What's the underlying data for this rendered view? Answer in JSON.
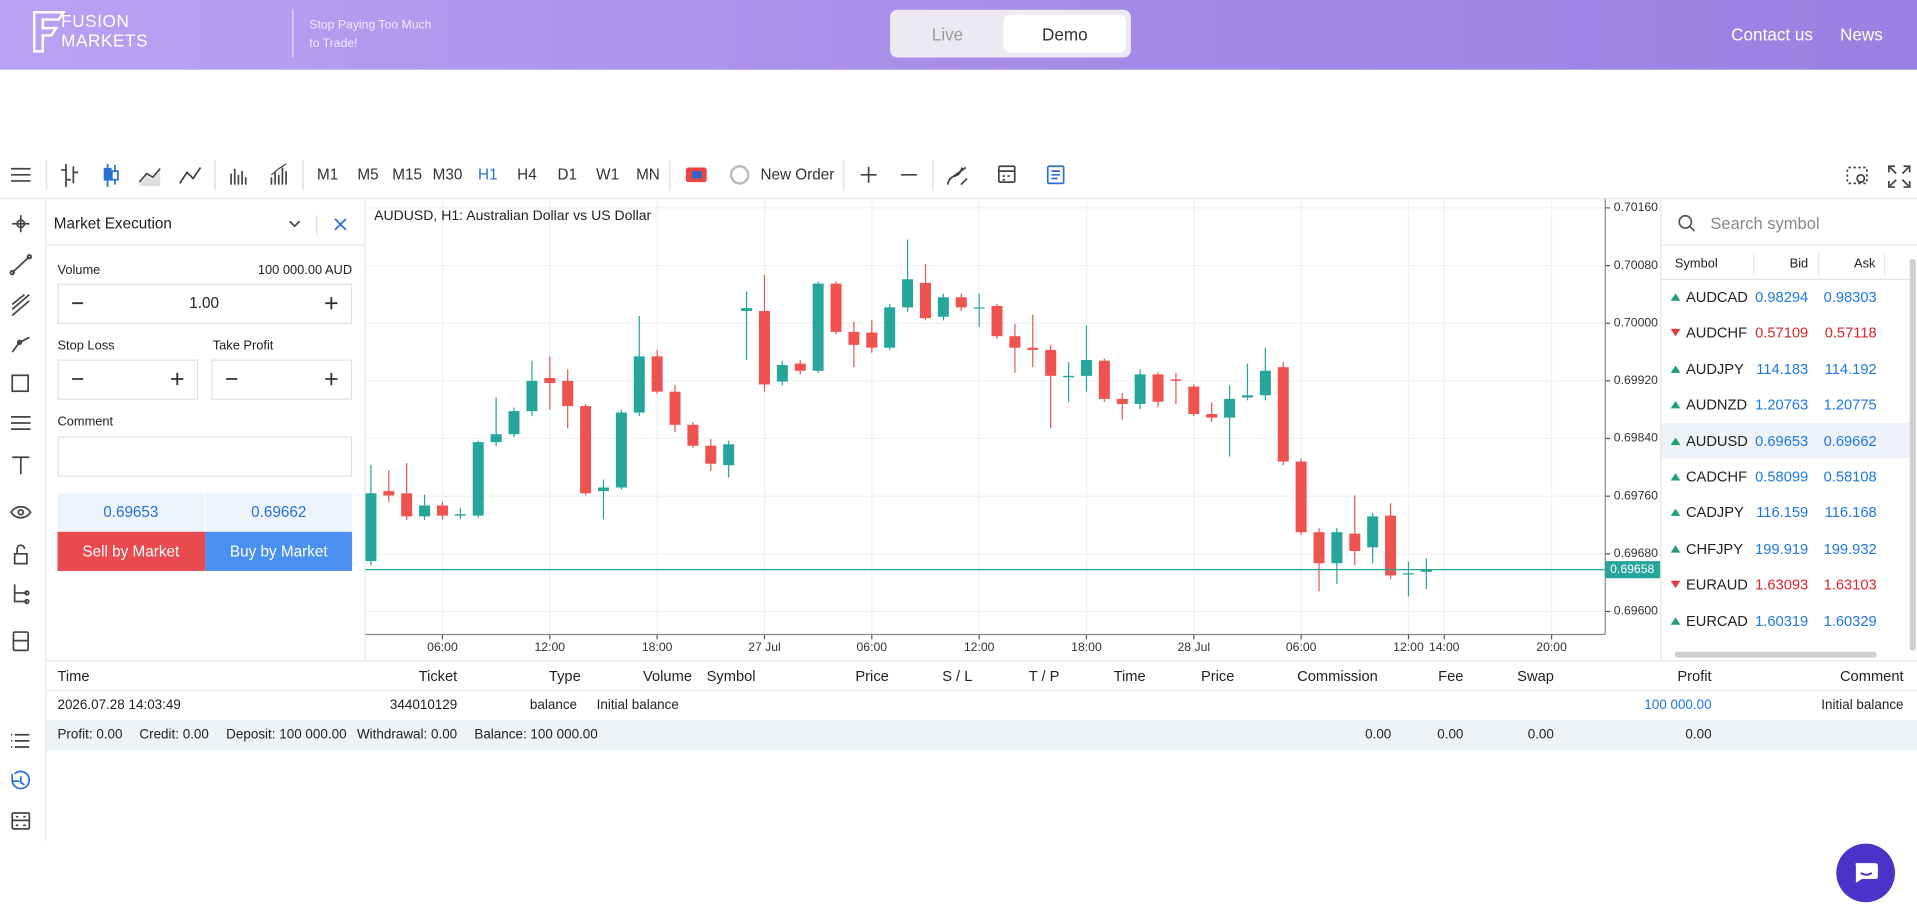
{
  "header": {
    "logo": [
      "FUSION",
      "MARKETS"
    ],
    "tagline": [
      "Stop Paying Too Much",
      "to Trade!"
    ],
    "modes": [
      "Live",
      "Demo"
    ],
    "links": [
      "Contact us",
      "News"
    ]
  },
  "toolbar": {
    "timeframes": [
      "M1",
      "M5",
      "M15",
      "M30",
      "H1",
      "H4",
      "D1",
      "W1",
      "MN"
    ],
    "active_timeframe": 4,
    "new_order": "New Order"
  },
  "order_panel": {
    "title": "Market Execution",
    "volume_label": "Volume",
    "volume_amount": "100 000.00 AUD",
    "volume": "1.00",
    "stop_loss": "Stop Loss",
    "take_profit": "Take Profit",
    "comment": "Comment",
    "bid": "0.69653",
    "ask": "0.69662",
    "sell": "Sell by Market",
    "buy": "Buy by Market"
  },
  "watchlist": {
    "search_placeholder": "Search symbol",
    "columns": [
      "Symbol",
      "Bid",
      "Ask"
    ],
    "selected": 4,
    "rows": [
      {
        "symbol": "AUDCAD",
        "bid": "0.98294",
        "ask": "0.98303",
        "direction": "up"
      },
      {
        "symbol": "AUDCHF",
        "bid": "0.57109",
        "ask": "0.57118",
        "direction": "down"
      },
      {
        "symbol": "AUDJPY",
        "bid": "114.183",
        "ask": "114.192",
        "direction": "up"
      },
      {
        "symbol": "AUDNZD",
        "bid": "1.20763",
        "ask": "1.20775",
        "direction": "up"
      },
      {
        "symbol": "AUDUSD",
        "bid": "0.69653",
        "ask": "0.69662",
        "direction": "up"
      },
      {
        "symbol": "CADCHF",
        "bid": "0.58099",
        "ask": "0.58108",
        "direction": "up"
      },
      {
        "symbol": "CADJPY",
        "bid": "116.159",
        "ask": "116.168",
        "direction": "up"
      },
      {
        "symbol": "CHFJPY",
        "bid": "199.919",
        "ask": "199.932",
        "direction": "up"
      },
      {
        "symbol": "EURAUD",
        "bid": "1.63093",
        "ask": "1.63103",
        "direction": "down"
      },
      {
        "symbol": "EURCAD",
        "bid": "1.60319",
        "ask": "1.60329",
        "direction": "up"
      }
    ]
  },
  "history": {
    "columns": [
      "Time",
      "Ticket",
      "Type",
      "Volume",
      "Symbol",
      "Price",
      "S / L",
      "T / P",
      "Time",
      "Price",
      "Commission",
      "Fee",
      "Swap",
      "Profit",
      "Comment"
    ],
    "rows": [
      [
        "2026.07.28 14:03:49",
        "344010129",
        "balance",
        "Initial balance",
        null,
        null,
        null,
        null,
        null,
        null,
        null,
        null,
        null,
        "100 000.00",
        "Initial balance"
      ]
    ],
    "summary": [
      "Profit: 0.00",
      "Credit: 0.00",
      "Deposit: 100 000.00",
      "Withdrawal: 0.00",
      "Balance: 100 000.00"
    ],
    "totals": [
      "0.00",
      "0.00",
      "0.00",
      "0.00"
    ]
  },
  "chart_data": {
    "type": "candlestick",
    "title": "AUDUSD, H1: Australian Dollar vs US Dollar",
    "up_color": "#26a69a",
    "down_color": "#ef5350",
    "grid": true,
    "xlim": [
      1.7,
      71
    ],
    "xticks": [
      {
        "value": 6,
        "label": "06:00"
      },
      {
        "value": 12,
        "label": "12:00"
      },
      {
        "value": 18,
        "label": "18:00"
      },
      {
        "value": 24,
        "label": "27 Jul"
      },
      {
        "value": 30,
        "label": "06:00"
      },
      {
        "value": 36,
        "label": "12:00"
      },
      {
        "value": 42,
        "label": "18:00"
      },
      {
        "value": 48,
        "label": "28 Jul"
      },
      {
        "value": 54,
        "label": "06:00"
      },
      {
        "value": 60,
        "label": "12:00"
      },
      {
        "value": 62,
        "label": "14:00"
      },
      {
        "value": 68,
        "label": "20:00"
      }
    ],
    "ylim": [
      0.69568,
      0.70172
    ],
    "yticks": [
      {
        "value": 0.7016,
        "label": "0.70160"
      },
      {
        "value": 0.7008,
        "label": "0.70080"
      },
      {
        "value": 0.7,
        "label": "0.70000"
      },
      {
        "value": 0.6992,
        "label": "0.69920"
      },
      {
        "value": 0.6984,
        "label": "0.69840"
      },
      {
        "value": 0.6976,
        "label": "0.69760"
      },
      {
        "value": 0.6968,
        "label": "0.69680"
      },
      {
        "value": 0.696,
        "label": "0.69600"
      }
    ],
    "current_price": {
      "value": 0.69658,
      "label": "0.69658"
    },
    "x": [
      2,
      3,
      4,
      5,
      6,
      7,
      8,
      9,
      10,
      11,
      12,
      13,
      14,
      15,
      16,
      17,
      18,
      19,
      20,
      21,
      22,
      23,
      24,
      25,
      26,
      27,
      28,
      29,
      30,
      31,
      32,
      33,
      34,
      35,
      36,
      37,
      38,
      39,
      40,
      41,
      42,
      43,
      44,
      45,
      46,
      47,
      48,
      49,
      50,
      51,
      52,
      53,
      54,
      55,
      56,
      57,
      58,
      59,
      60,
      61
    ],
    "open": [
      0.6967,
      0.69767,
      0.69764,
      0.69732,
      0.69747,
      0.69733,
      0.69733,
      0.69835,
      0.69846,
      0.69878,
      0.69924,
      0.6992,
      0.69885,
      0.69767,
      0.69772,
      0.69876,
      0.69954,
      0.69905,
      0.69859,
      0.6983,
      0.69803,
      0.70017,
      0.70017,
      0.69919,
      0.69944,
      0.69934,
      0.70055,
      0.69988,
      0.69987,
      0.69966,
      0.70022,
      0.70056,
      0.70009,
      0.70036,
      0.70021,
      0.70024,
      0.69982,
      0.69966,
      0.69963,
      0.69925,
      0.69927,
      0.69948,
      0.69895,
      0.69888,
      0.69929,
      0.69922,
      0.69912,
      0.69874,
      0.69869,
      0.69897,
      0.699,
      0.69939,
      0.69808,
      0.6971,
      0.69667,
      0.69708,
      0.69689,
      0.69733,
      0.69652,
      0.69655
    ],
    "high": [
      0.69803,
      0.69796,
      0.69806,
      0.69762,
      0.69752,
      0.69744,
      0.69837,
      0.69897,
      0.69883,
      0.69948,
      0.69954,
      0.69936,
      0.69888,
      0.69783,
      0.6988,
      0.7001,
      0.69963,
      0.69914,
      0.69863,
      0.69839,
      0.69837,
      0.70044,
      0.70067,
      0.69948,
      0.69949,
      0.70058,
      0.70058,
      0.70002,
      0.70004,
      0.70027,
      0.70116,
      0.70082,
      0.70041,
      0.70041,
      0.70041,
      0.70027,
      0.69999,
      0.70012,
      0.6997,
      0.69946,
      0.69997,
      0.69951,
      0.69903,
      0.69936,
      0.69932,
      0.69931,
      0.69915,
      0.6989,
      0.69914,
      0.69944,
      0.69966,
      0.69946,
      0.69812,
      0.69716,
      0.69716,
      0.69761,
      0.69737,
      0.6975,
      0.69669,
      0.69674
    ],
    "low": [
      0.69664,
      0.69752,
      0.69727,
      0.69727,
      0.69728,
      0.69728,
      0.6973,
      0.69829,
      0.69842,
      0.69871,
      0.6988,
      0.69854,
      0.69761,
      0.69728,
      0.69769,
      0.69871,
      0.69902,
      0.69849,
      0.69827,
      0.69795,
      0.69786,
      0.69949,
      0.69905,
      0.69914,
      0.69929,
      0.69931,
      0.69985,
      0.69939,
      0.69959,
      0.69963,
      0.70016,
      0.70004,
      0.70004,
      0.70017,
      0.69995,
      0.69978,
      0.69931,
      0.69939,
      0.69854,
      0.69891,
      0.69905,
      0.69891,
      0.69866,
      0.69881,
      0.69883,
      0.69888,
      0.69871,
      0.69863,
      0.69815,
      0.69893,
      0.69893,
      0.69803,
      0.69706,
      0.69628,
      0.69638,
      0.69664,
      0.69667,
      0.69645,
      0.69621,
      0.69631
    ],
    "close": [
      0.69764,
      0.69761,
      0.69732,
      0.69747,
      0.69733,
      0.69735,
      0.69835,
      0.69846,
      0.69878,
      0.6992,
      0.69917,
      0.69885,
      0.69764,
      0.69772,
      0.69876,
      0.69954,
      0.69905,
      0.69859,
      0.6983,
      0.69805,
      0.69832,
      0.70021,
      0.69915,
      0.69942,
      0.69934,
      0.70055,
      0.69988,
      0.6997,
      0.69966,
      0.70022,
      0.70061,
      0.70007,
      0.70036,
      0.70022,
      0.70022,
      0.69982,
      0.69966,
      0.69963,
      0.69927,
      0.69927,
      0.69949,
      0.69895,
      0.69888,
      0.69929,
      0.69891,
      0.6992,
      0.69874,
      0.69869,
      0.69895,
      0.699,
      0.69934,
      0.69808,
      0.6971,
      0.69667,
      0.6971,
      0.69684,
      0.69732,
      0.6965,
      0.69653,
      0.69658
    ]
  }
}
